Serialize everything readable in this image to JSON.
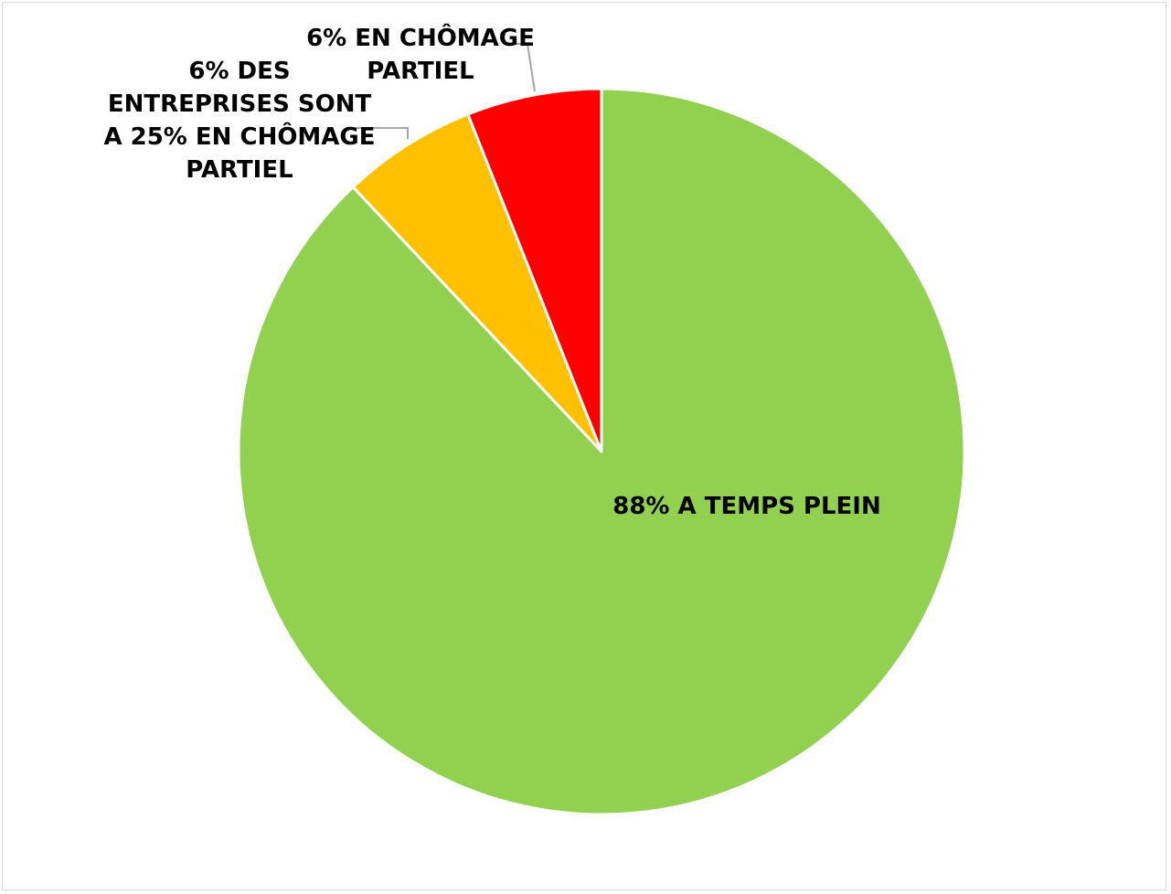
{
  "chart_data": {
    "type": "pie",
    "title": "",
    "start_angle_deg": 0,
    "direction": "clockwise",
    "slice_border_color": "#ffffff",
    "leader_line_color": "#a6a6a6",
    "slices": [
      {
        "label_lines": [
          "88% A TEMPS PLEIN"
        ],
        "value": 88,
        "color": "#92d050"
      },
      {
        "label_lines": [
          "6% DES",
          "ENTREPRISES SONT",
          "A 25% EN CHÔMAGE",
          "PARTIEL"
        ],
        "value": 6,
        "color": "#ffc000"
      },
      {
        "label_lines": [
          "6% EN CHÔMAGE",
          "PARTIEL"
        ],
        "value": 6,
        "color": "#ff0000"
      }
    ]
  }
}
